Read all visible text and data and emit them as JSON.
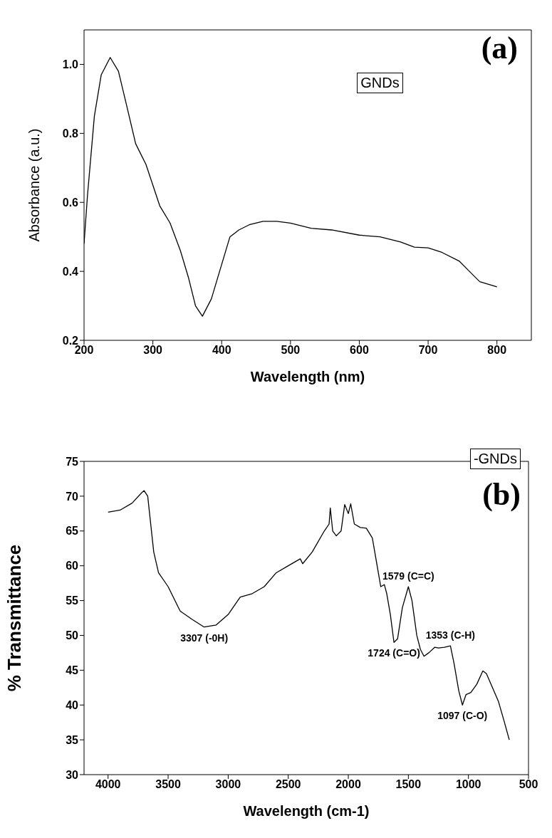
{
  "chart_data": [
    {
      "type": "line",
      "xlabel": "Wavelength (nm)",
      "ylabel": "Absorbance (a.u.)",
      "xlim": [
        200,
        850
      ],
      "xticks": [
        200,
        300,
        400,
        500,
        600,
        700,
        800
      ],
      "ylim": [
        0.2,
        1.1
      ],
      "yticks": [
        0.2,
        0.4,
        0.6,
        0.8,
        {
          "value": 1,
          "label": "1.0"
        }
      ],
      "annotations": [
        "GNDs",
        "(a)"
      ],
      "series": [
        {
          "color": "#000000",
          "x": [
            200,
            205,
            215,
            225,
            238,
            250,
            262,
            275,
            290,
            300,
            310,
            325,
            340,
            352,
            362,
            372,
            385,
            400,
            412,
            425,
            440,
            460,
            480,
            500,
            530,
            560,
            600,
            630,
            660,
            680,
            700,
            720,
            745,
            760,
            775,
            800
          ],
          "values": [
            0.48,
            0.62,
            0.85,
            0.97,
            1.02,
            0.98,
            0.88,
            0.77,
            0.71,
            0.65,
            0.59,
            0.54,
            0.46,
            0.38,
            0.3,
            0.27,
            0.32,
            0.42,
            0.5,
            0.52,
            0.535,
            0.545,
            0.545,
            0.54,
            0.525,
            0.52,
            0.505,
            0.5,
            0.485,
            0.47,
            0.468,
            0.455,
            0.43,
            0.4,
            0.37,
            0.355
          ]
        }
      ]
    },
    {
      "type": "line",
      "xlabel": "Wavelength (cm-1)",
      "ylabel": "% Transmittance",
      "xlim": [
        4200,
        500
      ],
      "xticks": [
        4000,
        3500,
        3000,
        2500,
        2000,
        1500,
        1000,
        500
      ],
      "ylim": [
        30,
        75
      ],
      "yticks": [
        30,
        35,
        40,
        45,
        50,
        55,
        60,
        65,
        70,
        75
      ],
      "annotations": [
        "-GNDs",
        "(b)",
        {
          "text": "3307 (-0H)",
          "x": 3200,
          "y": 51.2
        },
        {
          "text": "1579 (C=C)",
          "x": 1500,
          "y": 57
        },
        {
          "text": "1724 (C=O)",
          "x": 1620,
          "y": 49
        },
        {
          "text": "1353 (C-H)",
          "x": 1150,
          "y": 48.5
        },
        {
          "text": "1097 (C-O)",
          "x": 1050,
          "y": 40
        }
      ],
      "series": [
        {
          "color": "#000000",
          "x": [
            4000,
            3900,
            3800,
            3720,
            3700,
            3670,
            3620,
            3580,
            3500,
            3400,
            3300,
            3200,
            3100,
            3000,
            2900,
            2800,
            2700,
            2600,
            2500,
            2400,
            2380,
            2300,
            2200,
            2160,
            2150,
            2130,
            2100,
            2060,
            2030,
            2000,
            1980,
            1950,
            1900,
            1850,
            1800,
            1760,
            1730,
            1700,
            1680,
            1650,
            1620,
            1590,
            1550,
            1500,
            1470,
            1430,
            1400,
            1370,
            1330,
            1280,
            1250,
            1200,
            1150,
            1120,
            1080,
            1050,
            1020,
            980,
            930,
            880,
            850,
            800,
            750,
            700,
            660
          ],
          "values": [
            67.7,
            68,
            69,
            70.5,
            70.8,
            70,
            62,
            59,
            57,
            53.5,
            52.3,
            51.2,
            51.5,
            53,
            55.5,
            56,
            57,
            59,
            60,
            61,
            60.3,
            62,
            65,
            66,
            68.3,
            65,
            64.3,
            65,
            68.8,
            67.5,
            68.9,
            66,
            65.5,
            65.4,
            64,
            60,
            57,
            57.3,
            56,
            53,
            49,
            49.5,
            54,
            57,
            55,
            50,
            48,
            47,
            47.5,
            48.3,
            48.2,
            48.3,
            48.5,
            46,
            42,
            40,
            41.5,
            41.8,
            43,
            44.9,
            44.5,
            42.5,
            40.5,
            37.5,
            35
          ]
        }
      ]
    }
  ]
}
